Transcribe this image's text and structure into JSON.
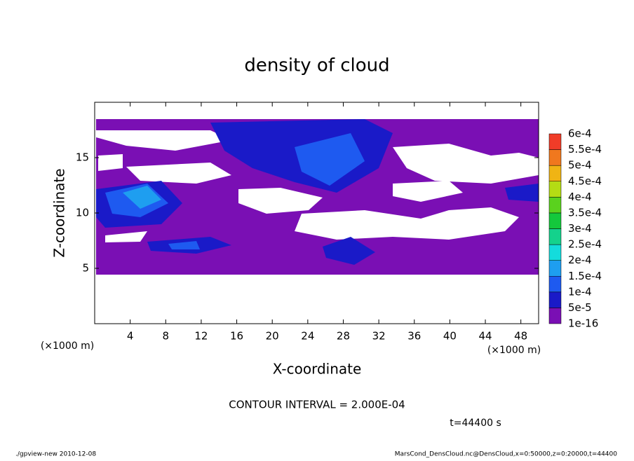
{
  "chart_data": {
    "type": "contour",
    "title": "density of cloud",
    "xlabel": "X-coordinate",
    "ylabel": "Z-coordinate",
    "xunit_label": "(×1000 m)",
    "xunit_label_right": "(×1000 m)",
    "xlim": [
      0,
      50
    ],
    "xticks": [
      4,
      8,
      12,
      16,
      20,
      24,
      28,
      32,
      36,
      40,
      44,
      48
    ],
    "ylim": [
      0,
      20
    ],
    "yticks": [
      5,
      10,
      15
    ],
    "colorbar": {
      "levels": [
        {
          "value": 1e-16,
          "label": "1e-16"
        },
        {
          "value": 5e-05,
          "label": "5e-5"
        },
        {
          "value": 0.0001,
          "label": "1e-4"
        },
        {
          "value": 0.00015,
          "label": "1.5e-4"
        },
        {
          "value": 0.0002,
          "label": "2e-4"
        },
        {
          "value": 0.00025,
          "label": "2.5e-4"
        },
        {
          "value": 0.0003,
          "label": "3e-4"
        },
        {
          "value": 0.00035,
          "label": "3.5e-4"
        },
        {
          "value": 0.0004,
          "label": "4e-4"
        },
        {
          "value": 0.00045,
          "label": "4.5e-4"
        },
        {
          "value": 0.0005,
          "label": "5e-4"
        },
        {
          "value": 0.00055,
          "label": "5.5e-4"
        },
        {
          "value": 0.0006,
          "label": "6e-4"
        }
      ],
      "colors": [
        "#7a0fb4",
        "#1a1ac8",
        "#1e5af0",
        "#1e9ef0",
        "#14dcdc",
        "#14d28c",
        "#14c83c",
        "#5ad21e",
        "#b4dc14",
        "#f0b414",
        "#f0781e",
        "#f03c28",
        "#f08c8c"
      ]
    },
    "annotations": {
      "contour_interval": "CONTOUR INTERVAL = 2.000E-04",
      "time": "t=44400 s",
      "footer_left": "./gpview-new  2010-12-08",
      "footer_right": "MarsCond_DensCloud.nc@DensCloud,x=0:50000,z=0:20000,t=44400"
    }
  }
}
